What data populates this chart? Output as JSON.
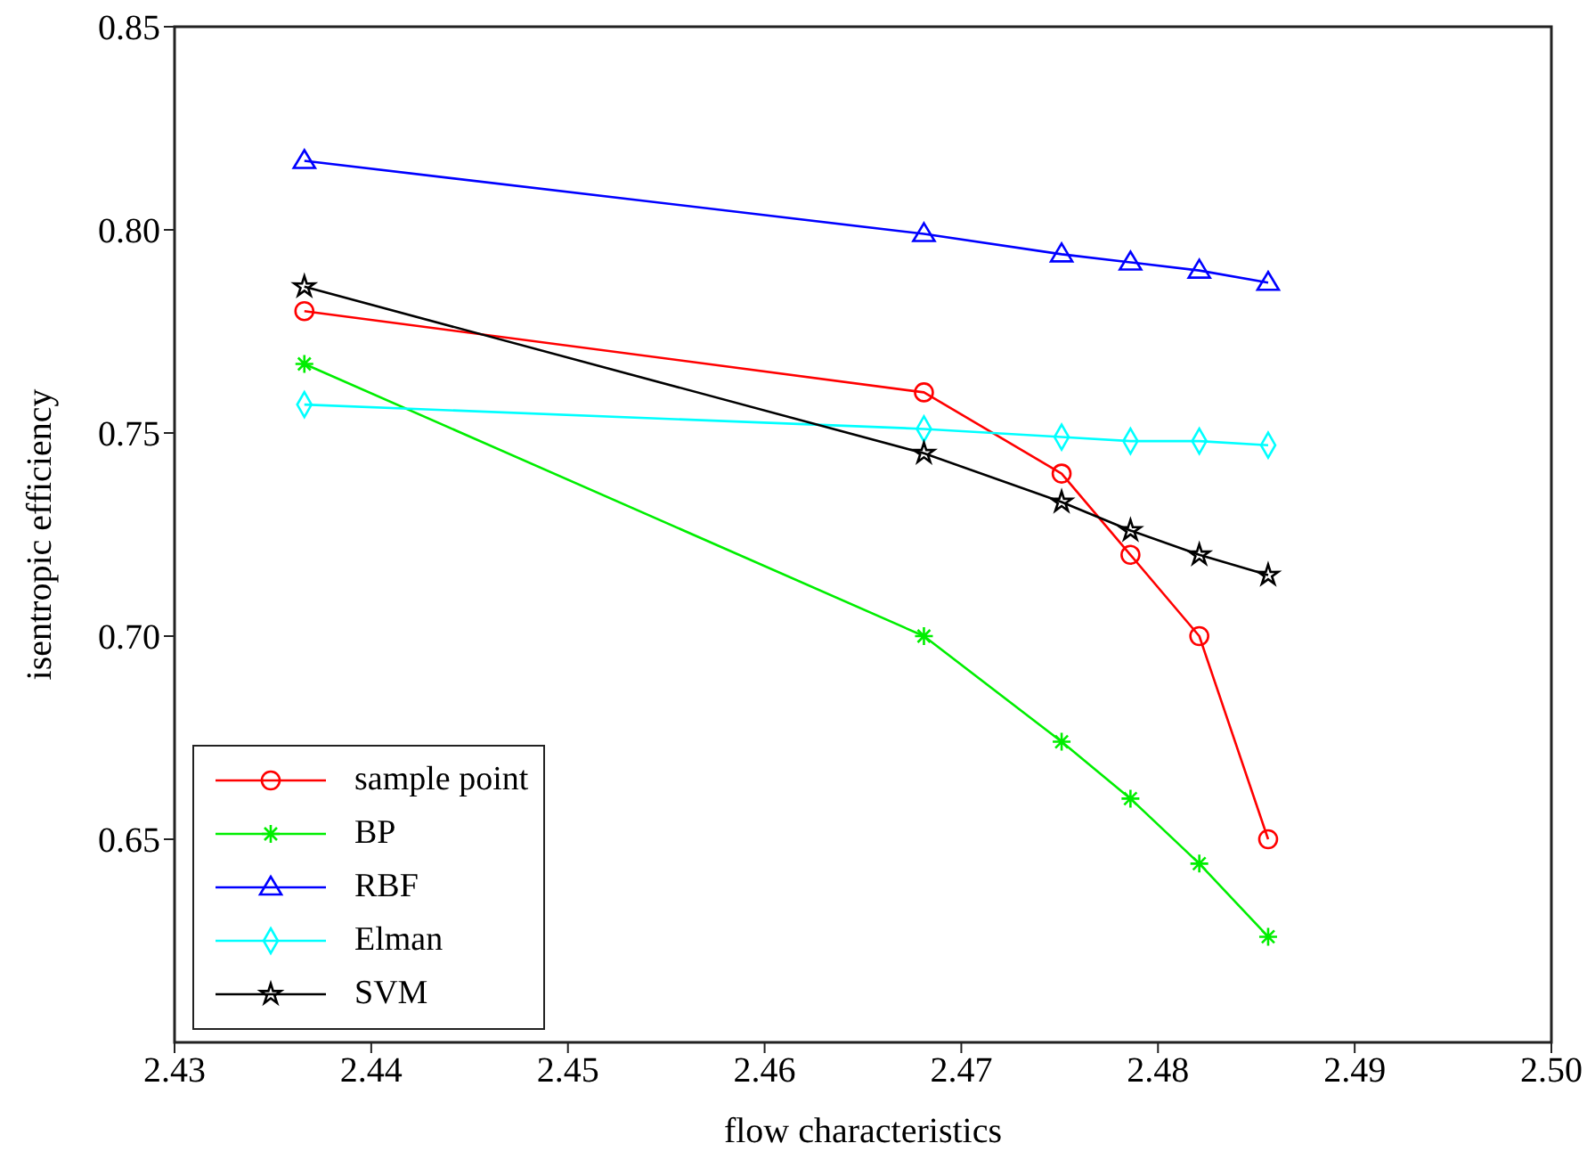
{
  "chart_data": {
    "type": "line",
    "xlabel": "flow characteristics",
    "ylabel": "isentropic efficiency",
    "x": [
      2.4366,
      2.4681,
      2.4751,
      2.4786,
      2.4821,
      2.4856
    ],
    "series": [
      {
        "name": "sample point",
        "color": "#ff0000",
        "marker": "circle",
        "values": [
          0.78,
          0.76,
          0.74,
          0.72,
          0.7,
          0.65
        ]
      },
      {
        "name": "BP",
        "color": "#00ee00",
        "marker": "cross",
        "values": [
          0.767,
          0.7,
          0.674,
          0.66,
          0.644,
          0.626
        ]
      },
      {
        "name": "RBF",
        "color": "#0000ff",
        "marker": "triangle",
        "values": [
          0.817,
          0.799,
          0.794,
          0.792,
          0.79,
          0.787
        ]
      },
      {
        "name": "Elman",
        "color": "#00ffff",
        "marker": "diamond",
        "values": [
          0.757,
          0.751,
          0.749,
          0.748,
          0.748,
          0.747
        ]
      },
      {
        "name": "SVM",
        "color": "#000000",
        "marker": "star",
        "values": [
          0.786,
          0.745,
          0.733,
          0.726,
          0.72,
          0.715
        ]
      }
    ],
    "xlim": [
      2.43,
      2.5
    ],
    "xticks": [
      2.43,
      2.44,
      2.45,
      2.46,
      2.47,
      2.48,
      2.49,
      {
        "value": 2.5,
        "label": "2.50"
      }
    ],
    "ylim": [
      0.6,
      0.85
    ],
    "yticks": [
      0.65,
      {
        "value": 0.7,
        "label": "0.70"
      },
      0.75,
      {
        "value": 0.8,
        "label": "0.80"
      },
      0.85
    ],
    "grid": false,
    "legend": "bottom left",
    "line_style": "solid"
  }
}
